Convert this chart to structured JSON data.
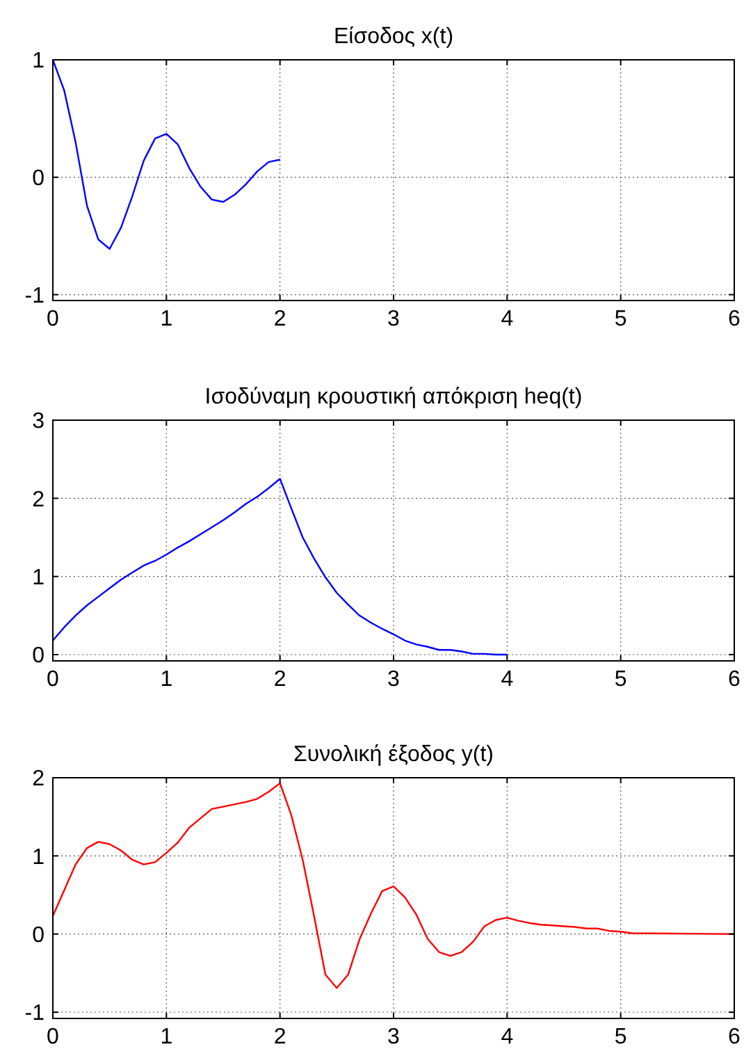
{
  "chart_data": [
    {
      "type": "line",
      "title": "Είσοδος x(t)",
      "x": [
        0,
        0.1,
        0.2,
        0.3,
        0.4,
        0.5,
        0.6,
        0.7,
        0.8,
        0.9,
        1.0,
        1.1,
        1.2,
        1.3,
        1.4,
        1.5,
        1.6,
        1.7,
        1.8,
        1.9,
        2.0
      ],
      "series": [
        {
          "color": "#0000ff",
          "values": [
            1,
            0.74,
            0.3,
            -0.24,
            -0.53,
            -0.61,
            -0.43,
            -0.16,
            0.14,
            0.33,
            0.37,
            0.28,
            0.08,
            -0.08,
            -0.19,
            -0.21,
            -0.15,
            -0.06,
            0.05,
            0.13,
            0.15
          ]
        }
      ],
      "xlim": [
        0,
        6
      ],
      "xticks": [
        0,
        1,
        2,
        3,
        4,
        5,
        6
      ],
      "ylim": [
        -1.05,
        1
      ],
      "yticks": [
        -1,
        0,
        1
      ],
      "grid": true
    },
    {
      "type": "line",
      "title": "Ισοδύναμη κρουστική απόκριση heq(t)",
      "x": [
        0,
        0.1,
        0.2,
        0.3,
        0.4,
        0.5,
        0.6,
        0.7,
        0.8,
        0.9,
        1.0,
        1.1,
        1.2,
        1.3,
        1.4,
        1.5,
        1.6,
        1.7,
        1.8,
        1.9,
        2.0,
        2.1,
        2.2,
        2.3,
        2.4,
        2.5,
        2.6,
        2.7,
        2.8,
        2.9,
        3.0,
        3.1,
        3.2,
        3.3,
        3.4,
        3.5,
        3.6,
        3.7,
        3.8,
        3.9,
        4.0
      ],
      "series": [
        {
          "color": "#0000ff",
          "values": [
            0.18,
            0.35,
            0.5,
            0.63,
            0.74,
            0.85,
            0.96,
            1.05,
            1.14,
            1.2,
            1.28,
            1.37,
            1.45,
            1.54,
            1.63,
            1.72,
            1.82,
            1.93,
            2.02,
            2.13,
            2.25,
            1.87,
            1.5,
            1.23,
            0.99,
            0.79,
            0.64,
            0.5,
            0.41,
            0.33,
            0.26,
            0.18,
            0.13,
            0.1,
            0.06,
            0.06,
            0.04,
            0.01,
            0.01,
            0,
            0
          ]
        }
      ],
      "xlim": [
        0,
        6
      ],
      "xticks": [
        0,
        1,
        2,
        3,
        4,
        5,
        6
      ],
      "ylim": [
        -0.08,
        3
      ],
      "yticks": [
        0,
        1,
        2,
        3
      ],
      "grid": true
    },
    {
      "type": "line",
      "title": "Συνολική έξοδος y(t)",
      "x": [
        0,
        0.1,
        0.2,
        0.3,
        0.4,
        0.5,
        0.6,
        0.7,
        0.8,
        0.9,
        1.0,
        1.1,
        1.2,
        1.3,
        1.4,
        1.5,
        1.6,
        1.7,
        1.8,
        1.9,
        2.0,
        2.1,
        2.2,
        2.3,
        2.4,
        2.5,
        2.6,
        2.7,
        2.8,
        2.9,
        3.0,
        3.1,
        3.2,
        3.3,
        3.4,
        3.5,
        3.6,
        3.7,
        3.8,
        3.9,
        4.0,
        4.1,
        4.2,
        4.3,
        4.4,
        4.5,
        4.6,
        4.7,
        4.8,
        4.9,
        5.0,
        5.1,
        6.0
      ],
      "series": [
        {
          "color": "#ff0000",
          "values": [
            0.23,
            0.56,
            0.89,
            1.1,
            1.18,
            1.15,
            1.07,
            0.95,
            0.89,
            0.92,
            1.04,
            1.17,
            1.36,
            1.48,
            1.6,
            1.63,
            1.66,
            1.69,
            1.73,
            1.82,
            1.93,
            1.52,
            0.95,
            0.23,
            -0.52,
            -0.69,
            -0.52,
            -0.07,
            0.26,
            0.55,
            0.61,
            0.47,
            0.25,
            -0.06,
            -0.23,
            -0.28,
            -0.23,
            -0.1,
            0.1,
            0.18,
            0.21,
            0.17,
            0.14,
            0.12,
            0.11,
            0.1,
            0.09,
            0.07,
            0.07,
            0.04,
            0.03,
            0.01,
            0
          ]
        }
      ],
      "xlim": [
        0,
        6
      ],
      "xticks": [
        0,
        1,
        2,
        3,
        4,
        5,
        6
      ],
      "ylim": [
        -1.08,
        2
      ],
      "yticks": [
        -1,
        0,
        1,
        2
      ],
      "grid": true
    }
  ]
}
